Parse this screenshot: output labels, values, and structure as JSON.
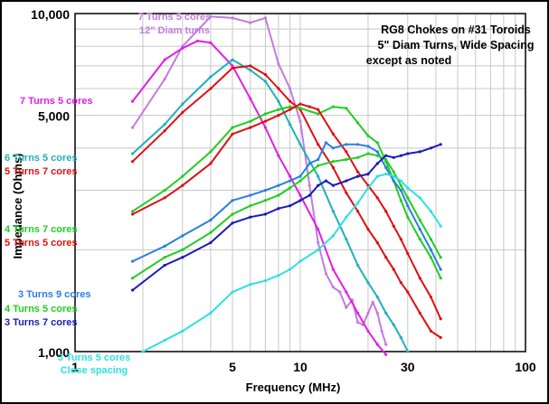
{
  "chart_data": {
    "type": "line",
    "title": "",
    "xlabel": "Frequency (MHz)",
    "ylabel": "Impedance (Ohms)",
    "x_scale": "log",
    "y_scale": "log",
    "xlim": [
      1,
      100
    ],
    "ylim": [
      1000,
      10000
    ],
    "x_ticks": [
      {
        "value": 1,
        "label": "1"
      },
      {
        "value": 5,
        "label": "5"
      },
      {
        "value": 10,
        "label": "10"
      },
      {
        "value": 30,
        "label": "30"
      },
      {
        "value": 100,
        "label": "100"
      }
    ],
    "y_ticks": [
      {
        "value": 1000,
        "label": "1,000"
      },
      {
        "value": 5000,
        "label": "5,000"
      },
      {
        "value": 10000,
        "label": "10,000"
      }
    ],
    "grid": true,
    "annotation": {
      "lines": [
        "RG8 Chokes on #31 Toroids",
        "5\" Diam Turns, Wide Spacing",
        "except as noted"
      ]
    },
    "series": [
      {
        "name": "7 Turns 5 cores 12\" Diam turns",
        "color": "#c27be0",
        "label_lines": [
          "7 Turns 5 cores",
          "12\" Diam turns"
        ],
        "points": [
          [
            1.8,
            4600
          ],
          [
            2.5,
            6400
          ],
          [
            3.0,
            8000
          ],
          [
            4.0,
            9800
          ],
          [
            5.0,
            9700
          ],
          [
            6.0,
            9400
          ],
          [
            7.0,
            9700
          ],
          [
            8.0,
            7100
          ],
          [
            9.0,
            6000
          ],
          [
            10.0,
            4800
          ],
          [
            11.0,
            3100
          ],
          [
            12.0,
            2100
          ],
          [
            13.0,
            1700
          ],
          [
            14.0,
            1550
          ],
          [
            15.0,
            1500
          ],
          [
            16.0,
            1350
          ],
          [
            17.0,
            1420
          ],
          [
            18.0,
            1220
          ],
          [
            19.0,
            1200
          ],
          [
            20.0,
            1300
          ],
          [
            21.0,
            1400
          ],
          [
            22.0,
            1300
          ],
          [
            23.0,
            1150
          ],
          [
            24.0,
            1050
          ]
        ]
      },
      {
        "name": "7 Turns 5 cores",
        "color": "#e020e0",
        "label_lines": [
          "7 Turns 5 cores"
        ],
        "points": [
          [
            1.8,
            5500
          ],
          [
            2.5,
            7300
          ],
          [
            3.0,
            7900
          ],
          [
            3.5,
            8300
          ],
          [
            4.0,
            8200
          ],
          [
            5.0,
            7000
          ],
          [
            6.0,
            5600
          ],
          [
            7.0,
            4600
          ],
          [
            8.0,
            3800
          ],
          [
            9.0,
            3300
          ],
          [
            10.0,
            2900
          ],
          [
            12.0,
            2300
          ],
          [
            14.0,
            1750
          ],
          [
            16.0,
            1500
          ],
          [
            18.0,
            1300
          ],
          [
            20.0,
            1150
          ],
          [
            22.0,
            1050
          ],
          [
            24.0,
            980
          ]
        ]
      },
      {
        "name": "6 Turns 5 cores",
        "color": "#20b0b8",
        "label_lines": [
          "6 Turns 5 cores"
        ],
        "points": [
          [
            1.8,
            3850
          ],
          [
            2.5,
            4700
          ],
          [
            3.0,
            5400
          ],
          [
            4.0,
            6500
          ],
          [
            5.0,
            7300
          ],
          [
            6.0,
            6800
          ],
          [
            7.0,
            6300
          ],
          [
            8.0,
            5500
          ],
          [
            9.0,
            4700
          ],
          [
            10.0,
            4100
          ],
          [
            12.0,
            3300
          ],
          [
            14.0,
            2600
          ],
          [
            16.0,
            2150
          ],
          [
            18.0,
            1800
          ],
          [
            20.0,
            1600
          ],
          [
            22.0,
            1450
          ],
          [
            24.0,
            1300
          ],
          [
            26.0,
            1200
          ],
          [
            28.0,
            1100
          ],
          [
            30.0,
            1000
          ]
        ]
      },
      {
        "name": "5 Turns 7 cores",
        "color": "#dd1010",
        "label_lines": [
          "5 Turns 7 cores"
        ],
        "points": [
          [
            1.8,
            3650
          ],
          [
            2.5,
            4500
          ],
          [
            3.0,
            5100
          ],
          [
            4.0,
            6000
          ],
          [
            5.0,
            6900
          ],
          [
            6.0,
            7000
          ],
          [
            7.0,
            6600
          ],
          [
            8.0,
            6000
          ],
          [
            9.0,
            5500
          ],
          [
            10.0,
            5200
          ],
          [
            12.0,
            4100
          ],
          [
            14.0,
            3500
          ],
          [
            16.0,
            2950
          ],
          [
            18.0,
            2600
          ],
          [
            20.0,
            2300
          ],
          [
            22.0,
            2100
          ],
          [
            24.0,
            1900
          ],
          [
            26.0,
            1750
          ],
          [
            28.0,
            1600
          ],
          [
            30.0,
            1500
          ],
          [
            34.0,
            1300
          ],
          [
            38.0,
            1150
          ],
          [
            42.0,
            1100
          ]
        ]
      },
      {
        "name": "4 Turns 7 cores",
        "color": "#22cc22",
        "label_lines": [
          "4 Turns  7 cores"
        ],
        "points": [
          [
            1.8,
            2600
          ],
          [
            2.5,
            3000
          ],
          [
            3.0,
            3300
          ],
          [
            4.0,
            3900
          ],
          [
            5.0,
            4600
          ],
          [
            6.0,
            4800
          ],
          [
            7.0,
            5050
          ],
          [
            8.0,
            5200
          ],
          [
            9.0,
            5300
          ],
          [
            10.0,
            5250
          ],
          [
            12.0,
            5050
          ],
          [
            14.0,
            5300
          ],
          [
            16.0,
            5250
          ],
          [
            18.0,
            4750
          ],
          [
            20.0,
            4350
          ],
          [
            22.0,
            4150
          ],
          [
            24.0,
            3650
          ],
          [
            26.0,
            3200
          ],
          [
            28.0,
            2800
          ],
          [
            30.0,
            2500
          ],
          [
            34.0,
            2150
          ],
          [
            38.0,
            1900
          ],
          [
            42.0,
            1650
          ]
        ]
      },
      {
        "name": "5 Turns 5 cores",
        "color": "#dd1010",
        "label_lines": [
          "5 Turns 5 cores"
        ],
        "points": [
          [
            1.8,
            2550
          ],
          [
            2.5,
            2850
          ],
          [
            3.0,
            3100
          ],
          [
            4.0,
            3600
          ],
          [
            5.0,
            4400
          ],
          [
            6.0,
            4600
          ],
          [
            7.0,
            4800
          ],
          [
            8.0,
            5000
          ],
          [
            9.0,
            5200
          ],
          [
            10.0,
            5400
          ],
          [
            11.0,
            5300
          ],
          [
            12.0,
            5200
          ],
          [
            14.0,
            4400
          ],
          [
            16.0,
            3900
          ],
          [
            18.0,
            3400
          ],
          [
            20.0,
            3100
          ],
          [
            22.0,
            2850
          ],
          [
            24.0,
            2600
          ],
          [
            26.0,
            2350
          ],
          [
            28.0,
            2150
          ],
          [
            30.0,
            1950
          ],
          [
            34.0,
            1650
          ],
          [
            38.0,
            1450
          ],
          [
            42.0,
            1250
          ]
        ]
      },
      {
        "name": "3 Turns 9 cores",
        "color": "#2a7ee0",
        "label_lines": [
          "3 Turns 9 cores"
        ],
        "points": [
          [
            1.8,
            1850
          ],
          [
            2.5,
            2050
          ],
          [
            3.0,
            2200
          ],
          [
            4.0,
            2450
          ],
          [
            5.0,
            2800
          ],
          [
            6.0,
            2900
          ],
          [
            7.0,
            3000
          ],
          [
            8.0,
            3100
          ],
          [
            9.0,
            3200
          ],
          [
            10.0,
            3300
          ],
          [
            11.0,
            3600
          ],
          [
            12.0,
            3700
          ],
          [
            13.0,
            4150
          ],
          [
            14.0,
            4000
          ],
          [
            16.0,
            4100
          ],
          [
            18.0,
            4100
          ],
          [
            20.0,
            4050
          ],
          [
            22.0,
            3900
          ],
          [
            24.0,
            3500
          ],
          [
            26.0,
            3200
          ],
          [
            28.0,
            3000
          ],
          [
            30.0,
            2700
          ],
          [
            34.0,
            2300
          ],
          [
            38.0,
            2000
          ],
          [
            42.0,
            1750
          ]
        ]
      },
      {
        "name": "4 Turns 5 cores",
        "color": "#22cc22",
        "label_lines": [
          "4 Turns 5 cores"
        ],
        "points": [
          [
            1.8,
            1650
          ],
          [
            2.5,
            1900
          ],
          [
            3.0,
            2000
          ],
          [
            4.0,
            2250
          ],
          [
            5.0,
            2550
          ],
          [
            6.0,
            2700
          ],
          [
            7.0,
            2800
          ],
          [
            8.0,
            2900
          ],
          [
            9.0,
            3050
          ],
          [
            10.0,
            3200
          ],
          [
            12.0,
            3550
          ],
          [
            14.0,
            3650
          ],
          [
            16.0,
            3700
          ],
          [
            18.0,
            3750
          ],
          [
            20.0,
            3850
          ],
          [
            22.0,
            3800
          ],
          [
            24.0,
            3700
          ],
          [
            26.0,
            3400
          ],
          [
            28.0,
            3100
          ],
          [
            30.0,
            2850
          ],
          [
            34.0,
            2450
          ],
          [
            38.0,
            2150
          ],
          [
            42.0,
            1900
          ]
        ]
      },
      {
        "name": "3 Turns 7 cores",
        "color": "#1a1ab8",
        "label_lines": [
          "3 Turns 7 cores"
        ],
        "points": [
          [
            1.8,
            1520
          ],
          [
            2.5,
            1800
          ],
          [
            3.0,
            1900
          ],
          [
            4.0,
            2100
          ],
          [
            5.0,
            2400
          ],
          [
            6.0,
            2500
          ],
          [
            7.0,
            2550
          ],
          [
            8.0,
            2650
          ],
          [
            9.0,
            2700
          ],
          [
            10.0,
            2800
          ],
          [
            11.0,
            2900
          ],
          [
            12.0,
            3100
          ],
          [
            13.0,
            3200
          ],
          [
            14.0,
            3100
          ],
          [
            16.0,
            3200
          ],
          [
            18.0,
            3300
          ],
          [
            20.0,
            3350
          ],
          [
            22.0,
            3600
          ],
          [
            24.0,
            3800
          ],
          [
            26.0,
            3750
          ],
          [
            28.0,
            3800
          ],
          [
            30.0,
            3850
          ],
          [
            34.0,
            3900
          ],
          [
            38.0,
            4000
          ],
          [
            42.0,
            4100
          ]
        ]
      },
      {
        "name": "3 Turns 5 cores Close spacing",
        "color": "#30e0e0",
        "label_lines": [
          "3 Turns 5 cores",
          "Close spacing"
        ],
        "points": [
          [
            2.0,
            1000
          ],
          [
            2.5,
            1080
          ],
          [
            3.0,
            1150
          ],
          [
            4.0,
            1300
          ],
          [
            5.0,
            1500
          ],
          [
            6.0,
            1580
          ],
          [
            7.0,
            1620
          ],
          [
            8.0,
            1680
          ],
          [
            9.0,
            1750
          ],
          [
            10.0,
            1850
          ],
          [
            12.0,
            2000
          ],
          [
            14.0,
            2200
          ],
          [
            16.0,
            2500
          ],
          [
            18.0,
            2750
          ],
          [
            20.0,
            3050
          ],
          [
            22.0,
            3300
          ],
          [
            24.0,
            3350
          ],
          [
            26.0,
            3300
          ],
          [
            28.0,
            3200
          ],
          [
            30.0,
            3050
          ],
          [
            34.0,
            2850
          ],
          [
            38.0,
            2600
          ],
          [
            42.0,
            2350
          ]
        ]
      }
    ]
  }
}
